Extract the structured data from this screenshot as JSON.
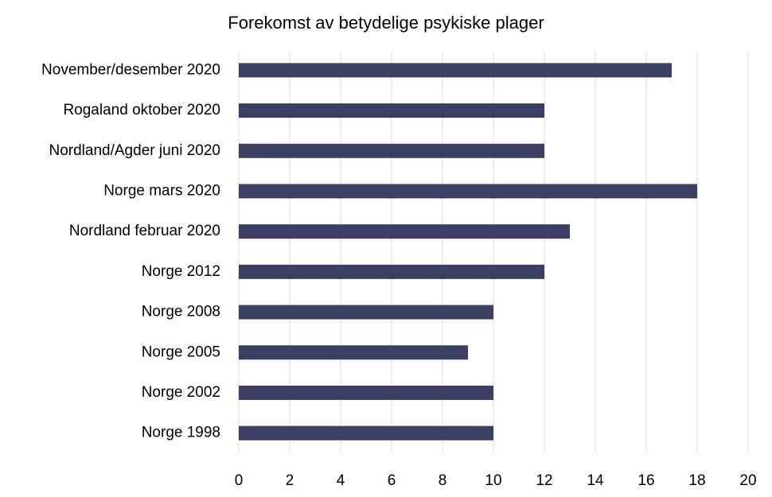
{
  "chart_data": {
    "type": "bar",
    "orientation": "horizontal",
    "title": "Forekomst av betydelige psykiske plager",
    "categories": [
      "November/desember 2020",
      "Rogaland oktober 2020",
      "Nordland/Agder juni 2020",
      "Norge mars 2020",
      "Nordland februar 2020",
      "Norge 2012",
      "Norge 2008",
      "Norge 2005",
      "Norge 2002",
      "Norge 1998"
    ],
    "values": [
      17,
      12,
      12,
      18,
      13,
      12,
      10,
      9,
      10,
      10
    ],
    "color": "#3b3e63",
    "xlim": [
      0,
      20
    ],
    "xticks": [
      0,
      2,
      4,
      6,
      8,
      10,
      12,
      14,
      16,
      18,
      20
    ],
    "grid": true
  }
}
